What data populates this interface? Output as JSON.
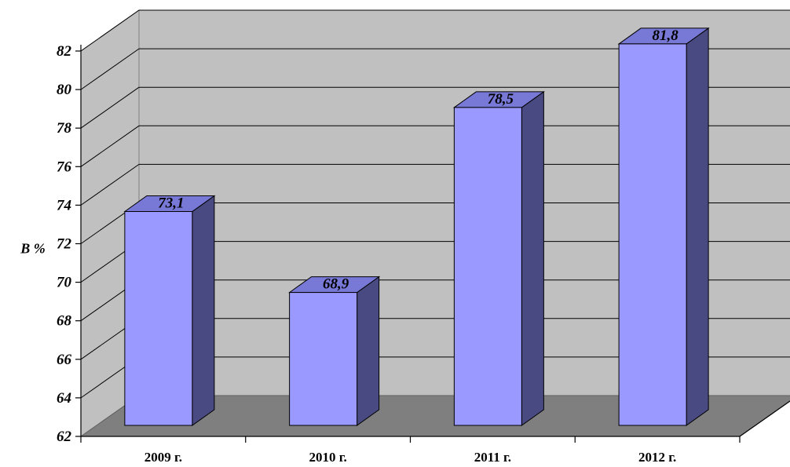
{
  "chart_data": {
    "type": "bar",
    "categories": [
      "2009 г.",
      "2010 г.",
      "2011 г.",
      "2012 г."
    ],
    "values": [
      73.1,
      68.9,
      78.5,
      81.8
    ],
    "data_labels": [
      "73,1",
      "68,9",
      "78,5",
      "81,8"
    ],
    "title": "",
    "xlabel": "",
    "ylabel": "В %",
    "ylim": [
      62,
      82
    ],
    "yticks": [
      "62",
      "64",
      "66",
      "68",
      "70",
      "72",
      "74",
      "76",
      "78",
      "80",
      "82"
    ],
    "grid": true,
    "legend": "none",
    "three_d": true
  },
  "colors": {
    "bar_front": "#9999ff",
    "bar_side": "#4a4a82",
    "bar_top": "#7878d6",
    "back_wall": "#c0c0c0",
    "side_wall": "#c0c0c0",
    "floor": "#7f7f7f",
    "grid": "#000000"
  }
}
